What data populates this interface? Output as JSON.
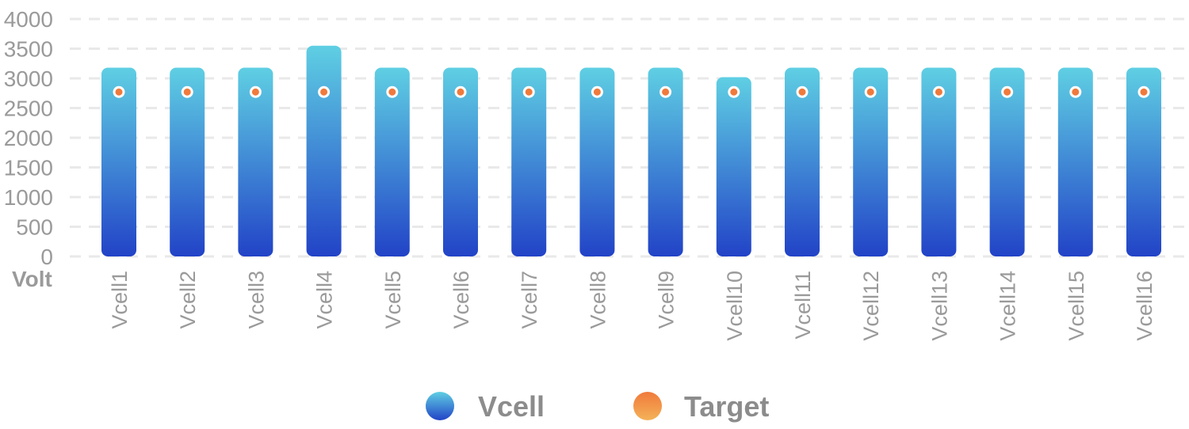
{
  "chart_data": {
    "type": "bar",
    "categories": [
      "Vcell1",
      "Vcell2",
      "Vcell3",
      "Vcell4",
      "Vcell5",
      "Vcell6",
      "Vcell7",
      "Vcell8",
      "Vcell9",
      "Vcell10",
      "Vcell11",
      "Vcell12",
      "Vcell13",
      "Vcell14",
      "Vcell15",
      "Vcell16"
    ],
    "series": [
      {
        "name": "Vcell",
        "kind": "bar",
        "values": [
          3180,
          3180,
          3180,
          3550,
          3180,
          3180,
          3180,
          3180,
          3180,
          3020,
          3180,
          3180,
          3180,
          3180,
          3180,
          3180
        ],
        "colors": [
          "#5fcfe3",
          "#2243c7"
        ]
      },
      {
        "name": "Target",
        "kind": "line",
        "values": [
          2770,
          2770,
          2770,
          2770,
          2770,
          2770,
          2770,
          2770,
          2770,
          2770,
          2770,
          2770,
          2770,
          2770,
          2770,
          2770
        ],
        "colors": [
          "#f07a3c",
          "#f4b258"
        ],
        "line_colors": [
          "#9fe3c7",
          "#2a9bbf"
        ]
      }
    ],
    "y_ticks": [
      "0",
      "500",
      "1000",
      "1500",
      "2000",
      "2500",
      "3000",
      "3500",
      "4000"
    ],
    "ylim": [
      0,
      4000
    ],
    "ylabel": "Volt",
    "xlabel": "",
    "grid": "horizontal-dashed",
    "legend_position": "bottom-center"
  }
}
